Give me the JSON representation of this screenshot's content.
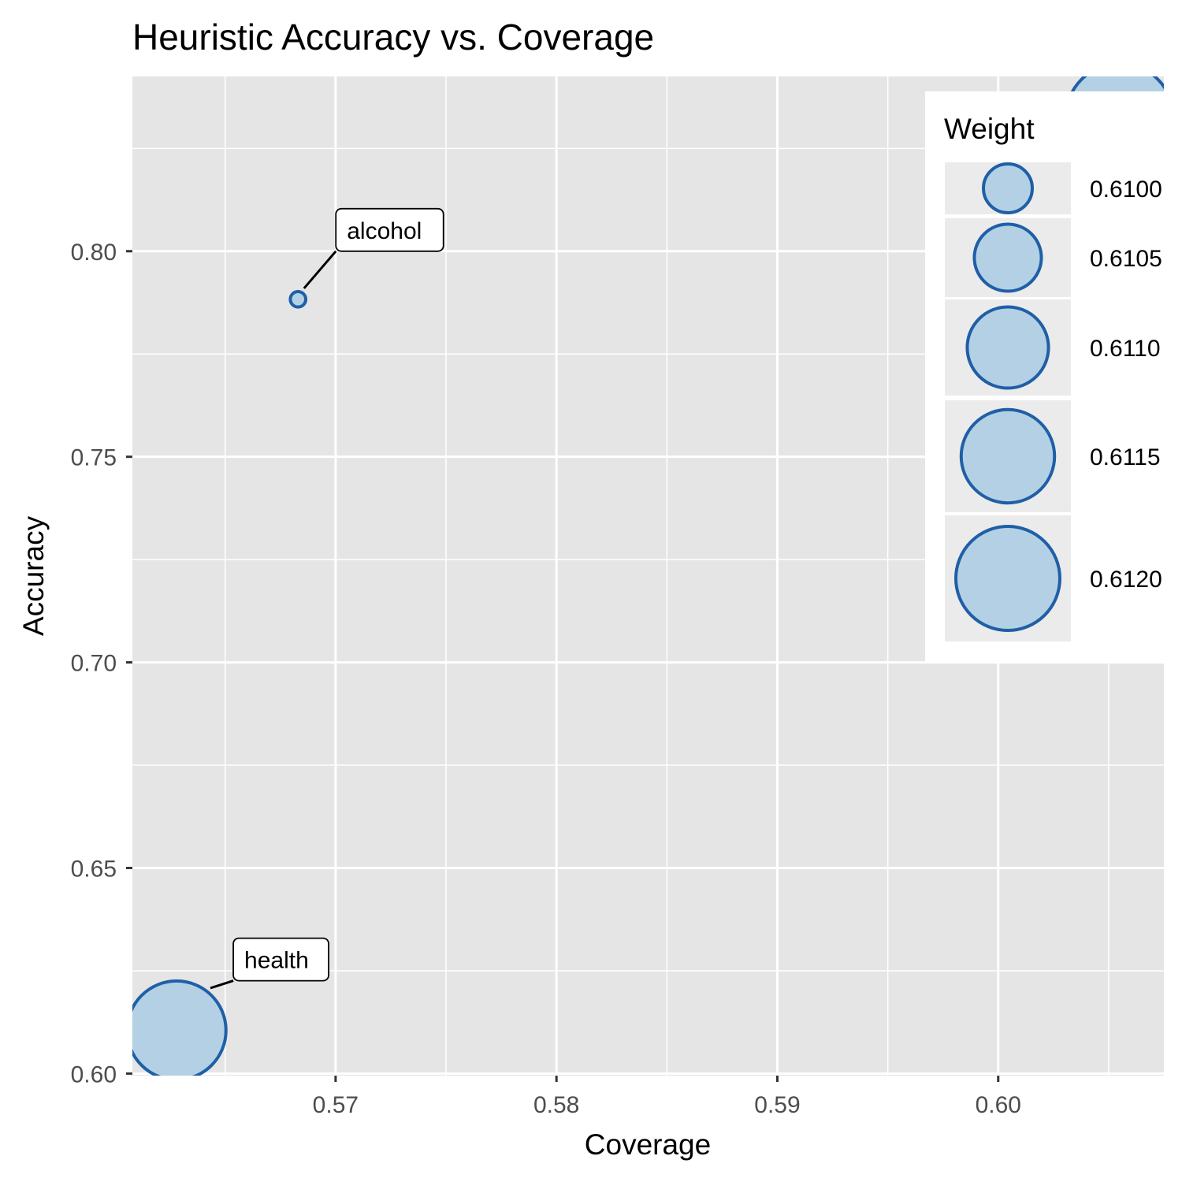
{
  "chart_data": {
    "type": "scatter",
    "title": "Heuristic Accuracy vs. Coverage",
    "xlabel": "Coverage",
    "ylabel": "Accuracy",
    "xlim": [
      0.5608,
      0.6075
    ],
    "ylim": [
      0.5995,
      0.8425
    ],
    "x_ticks": [
      0.57,
      0.58,
      0.59,
      0.6
    ],
    "x_tick_labels": [
      "0.57",
      "0.58",
      "0.59",
      "0.60"
    ],
    "y_ticks": [
      0.6,
      0.65,
      0.7,
      0.75,
      0.8
    ],
    "y_tick_labels": [
      "0.60",
      "0.65",
      "0.70",
      "0.75",
      "0.80"
    ],
    "grid": true,
    "size_variable": "Weight",
    "points": [
      {
        "label": "alcohol",
        "x": 0.5683,
        "y": 0.7883,
        "weight": 0.60955
      },
      {
        "label": "health",
        "x": 0.5628,
        "y": 0.6105,
        "weight": 0.61175
      },
      {
        "label": "",
        "x": 0.6055,
        "y": 0.8325,
        "weight": 0.6122
      }
    ],
    "legend": {
      "title": "Weight",
      "position": "top-right",
      "entries": [
        {
          "label": "0.6100",
          "value": 0.61
        },
        {
          "label": "0.6105",
          "value": 0.6105
        },
        {
          "label": "0.6110",
          "value": 0.611
        },
        {
          "label": "0.6115",
          "value": 0.6115
        },
        {
          "label": "0.6120",
          "value": 0.612
        }
      ]
    },
    "colors": {
      "panel_background": "#e5e5e5",
      "grid": "#ffffff",
      "point_fill": "#b3d0e5",
      "point_stroke": "#1f5fa6"
    }
  }
}
